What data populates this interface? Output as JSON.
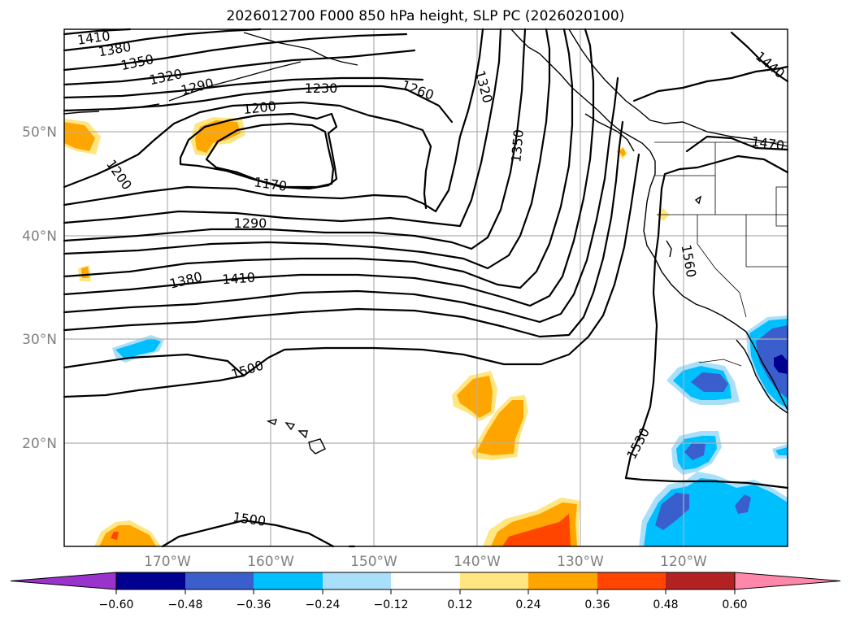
{
  "title": "2026012700 F000 850 hPa height, SLP PC (2026020100)",
  "lat_labels": [
    "50°N",
    "40°N",
    "30°N",
    "20°N"
  ],
  "lon_labels": [
    "170°W",
    "160°W",
    "150°W",
    "140°W",
    "130°W",
    "120°W"
  ],
  "contour_labels": [
    "1410",
    "1380",
    "1350",
    "1320",
    "1290",
    "1230",
    "1260",
    "1320",
    "1200",
    "1350",
    "1440",
    "1470",
    "1200",
    "1170",
    "1290",
    "1560",
    "1380",
    "1410",
    "1500",
    "1530",
    "1500"
  ],
  "colorbar": {
    "ticks": [
      "−0.60",
      "−0.48",
      "−0.36",
      "−0.24",
      "−0.12",
      "0.12",
      "0.24",
      "0.36",
      "0.48",
      "0.60"
    ],
    "colors": [
      "#9933cc",
      "#000090",
      "#3a5fcd",
      "#00bfff",
      "#aadff9",
      "#ffffff",
      "#ffe680",
      "#ffa500",
      "#ff4500",
      "#b22222",
      "#ff88aa",
      "#ff88aa"
    ]
  }
}
